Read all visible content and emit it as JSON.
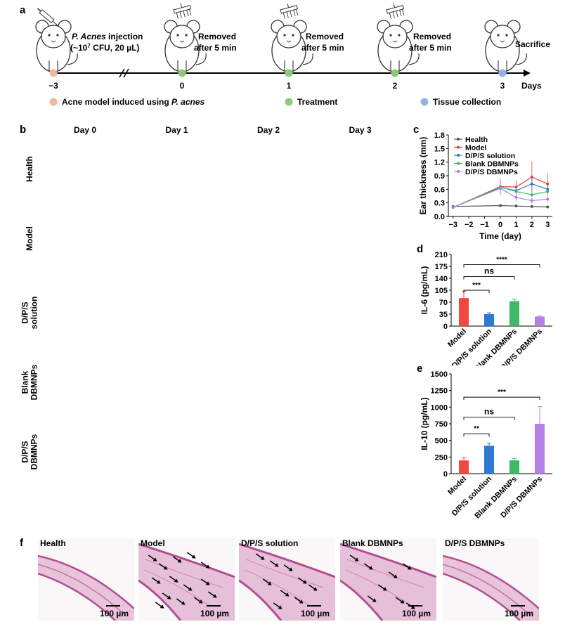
{
  "panel_labels": {
    "a": "a",
    "b": "b",
    "c": "c",
    "d": "d",
    "e": "e",
    "f": "f"
  },
  "panel_a": {
    "steps": [
      {
        "label_line1": "P. Acnes injection",
        "label_line2": "(~10",
        "sup": "7",
        "label_line2b": " CFU, 20 µL)",
        "tick": "−3",
        "dot_color": "#f4b79a"
      },
      {
        "label_line1": "Removed",
        "label_line2": "after 5 min",
        "tick": "0",
        "dot_color": "#8cc97a"
      },
      {
        "label_line1": "Removed",
        "label_line2": "after 5 min",
        "tick": "1",
        "dot_color": "#8cc97a"
      },
      {
        "label_line1": "Removed",
        "label_line2": "after 5 min",
        "tick": "2",
        "dot_color": "#8cc97a"
      },
      {
        "label_line1": "Sacrifice",
        "label_line2": "",
        "tick": "3",
        "dot_color": "#8fb6e0"
      }
    ],
    "axis_unit": "Days",
    "legend": [
      {
        "text_pre": "Acne model induced using ",
        "text_em": "P. acnes",
        "color": "#f4b79a"
      },
      {
        "text_pre": "Treatment",
        "text_em": "",
        "color": "#8cc97a"
      },
      {
        "text_pre": "Tissue collection",
        "text_em": "",
        "color": "#8fb6e0"
      }
    ]
  },
  "panel_b": {
    "days": [
      "Day 0",
      "Day 1",
      "Day 2",
      "Day 3"
    ],
    "rows": [
      {
        "line1": "Health",
        "line2": "",
        "circle": false
      },
      {
        "line1": "Model",
        "line2": "",
        "circle": true
      },
      {
        "line1": "D/P/S",
        "line2": "solution",
        "circle": true
      },
      {
        "line1": "Blank",
        "line2": "DBMNPs",
        "circle": true
      },
      {
        "line1": "D/P/S",
        "line2": "DBMNPs",
        "circle": true
      }
    ]
  },
  "chart_data": [
    {
      "type": "line",
      "id": "c",
      "xlabel": "Time (day)",
      "ylabel": "Ear thickness (mm)",
      "xlim": [
        -3.3,
        3.3
      ],
      "ylim": [
        0,
        1.8
      ],
      "xticks": [
        "−3",
        "−2",
        "−1",
        "0",
        "1",
        "2",
        "3"
      ],
      "xtick_values": [
        -3,
        -2,
        -1,
        0,
        1,
        2,
        3
      ],
      "yticks": [
        "0.0",
        "0.3",
        "0.6",
        "0.9",
        "1.2",
        "1.5",
        "1.8"
      ],
      "ytick_values": [
        0,
        0.3,
        0.6,
        0.9,
        1.2,
        1.5,
        1.8
      ],
      "x": [
        -3,
        0,
        1,
        2,
        3
      ],
      "series": [
        {
          "name": "Health",
          "color": "#555555",
          "values": [
            0.22,
            0.24,
            0.23,
            0.22,
            0.21
          ],
          "err": [
            0.02,
            0.02,
            0.02,
            0.02,
            0.02
          ]
        },
        {
          "name": "Model",
          "color": "#e8403f",
          "values": [
            0.2,
            0.66,
            0.65,
            0.87,
            0.72
          ],
          "err": [
            0.03,
            0.18,
            0.15,
            0.35,
            0.22
          ]
        },
        {
          "name": "D/P/S solution",
          "color": "#2a78c8",
          "values": [
            0.2,
            0.64,
            0.57,
            0.72,
            0.6
          ],
          "err": [
            0.03,
            0.12,
            0.1,
            0.15,
            0.1
          ]
        },
        {
          "name": "Blank DBMNPs",
          "color": "#3fb56a",
          "values": [
            0.2,
            0.65,
            0.55,
            0.48,
            0.55
          ],
          "err": [
            0.03,
            0.1,
            0.1,
            0.1,
            0.08
          ]
        },
        {
          "name": "D/P/S DBMNPs",
          "color": "#b47ee0",
          "values": [
            0.2,
            0.62,
            0.42,
            0.35,
            0.38
          ],
          "err": [
            0.03,
            0.1,
            0.08,
            0.08,
            0.06
          ]
        }
      ]
    },
    {
      "type": "bar",
      "id": "d",
      "ylabel": "IL-6 (pg/mL)",
      "ylim": [
        0,
        210
      ],
      "yticks": [
        "0",
        "35",
        "70",
        "105",
        "140",
        "175",
        "210"
      ],
      "ytick_values": [
        0,
        35,
        70,
        105,
        140,
        175,
        210
      ],
      "categories": [
        "Model",
        "D/P/S solution",
        "Blank DBMNPs",
        "D/P/S DBMNPs"
      ],
      "values": [
        82,
        35,
        73,
        28
      ],
      "err": [
        20,
        4,
        6,
        2
      ],
      "colors": [
        "#f2473f",
        "#2e7bd4",
        "#3fb86a",
        "#b67fe3"
      ],
      "brackets": [
        {
          "from": 0,
          "to": 1,
          "level": 105,
          "label": "***"
        },
        {
          "from": 0,
          "to": 2,
          "level": 145,
          "label": "ns"
        },
        {
          "from": 0,
          "to": 3,
          "level": 180,
          "label": "****"
        }
      ]
    },
    {
      "type": "bar",
      "id": "e",
      "ylabel": "IL-10 (pg/mL)",
      "ylim": [
        0,
        1500
      ],
      "yticks": [
        "0",
        "250",
        "500",
        "750",
        "1000",
        "1250",
        "1500"
      ],
      "ytick_values": [
        0,
        250,
        500,
        750,
        1000,
        1250,
        1500
      ],
      "categories": [
        "Model",
        "D/P/S solution",
        "Blank DBMNPs",
        "D/P/S DBMNPs"
      ],
      "values": [
        200,
        420,
        200,
        750
      ],
      "err": [
        40,
        40,
        30,
        260
      ],
      "colors": [
        "#f2473f",
        "#2e7bd4",
        "#3fb86a",
        "#b67fe3"
      ],
      "brackets": [
        {
          "from": 0,
          "to": 1,
          "level": 600,
          "label": "**"
        },
        {
          "from": 0,
          "to": 2,
          "level": 850,
          "label": "ns"
        },
        {
          "from": 0,
          "to": 3,
          "level": 1150,
          "label": "***"
        }
      ]
    }
  ],
  "panel_f": {
    "panels": [
      {
        "title": "Health",
        "scale": "100 µm",
        "arrows": 0
      },
      {
        "title": "Model",
        "scale": "100 µm",
        "arrows": 14
      },
      {
        "title": "D/P/S solution",
        "scale": "100 µm",
        "arrows": 9
      },
      {
        "title": "Blank DBMNPs",
        "scale": "100 µm",
        "arrows": 8
      },
      {
        "title": "D/P/S DBMNPs",
        "scale": "100 µm",
        "arrows": 0
      }
    ]
  }
}
